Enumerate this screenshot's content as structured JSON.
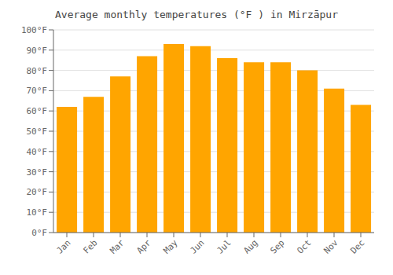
{
  "chart_data": {
    "type": "bar",
    "title": "Average monthly temperatures (°F ) in Mirzāpur",
    "categories": [
      "Jan",
      "Feb",
      "Mar",
      "Apr",
      "May",
      "Jun",
      "Jul",
      "Aug",
      "Sep",
      "Oct",
      "Nov",
      "Dec"
    ],
    "values": [
      62,
      67,
      77,
      87,
      93,
      92,
      86,
      84,
      84,
      80,
      71,
      63
    ],
    "color": "#FFA500",
    "ylim": [
      0,
      100
    ],
    "yticks": [
      {
        "value": 0,
        "label": "0°F"
      },
      {
        "value": 10,
        "label": "10°F"
      },
      {
        "value": 20,
        "label": "20°F"
      },
      {
        "value": 30,
        "label": "30°F"
      },
      {
        "value": 40,
        "label": "40°F"
      },
      {
        "value": 50,
        "label": "50°F"
      },
      {
        "value": 60,
        "label": "60°F"
      },
      {
        "value": 70,
        "label": "70°F"
      },
      {
        "value": 80,
        "label": "80°F"
      },
      {
        "value": 90,
        "label": "90°F"
      },
      {
        "value": 100,
        "label": "100°F"
      }
    ],
    "grid": true
  }
}
